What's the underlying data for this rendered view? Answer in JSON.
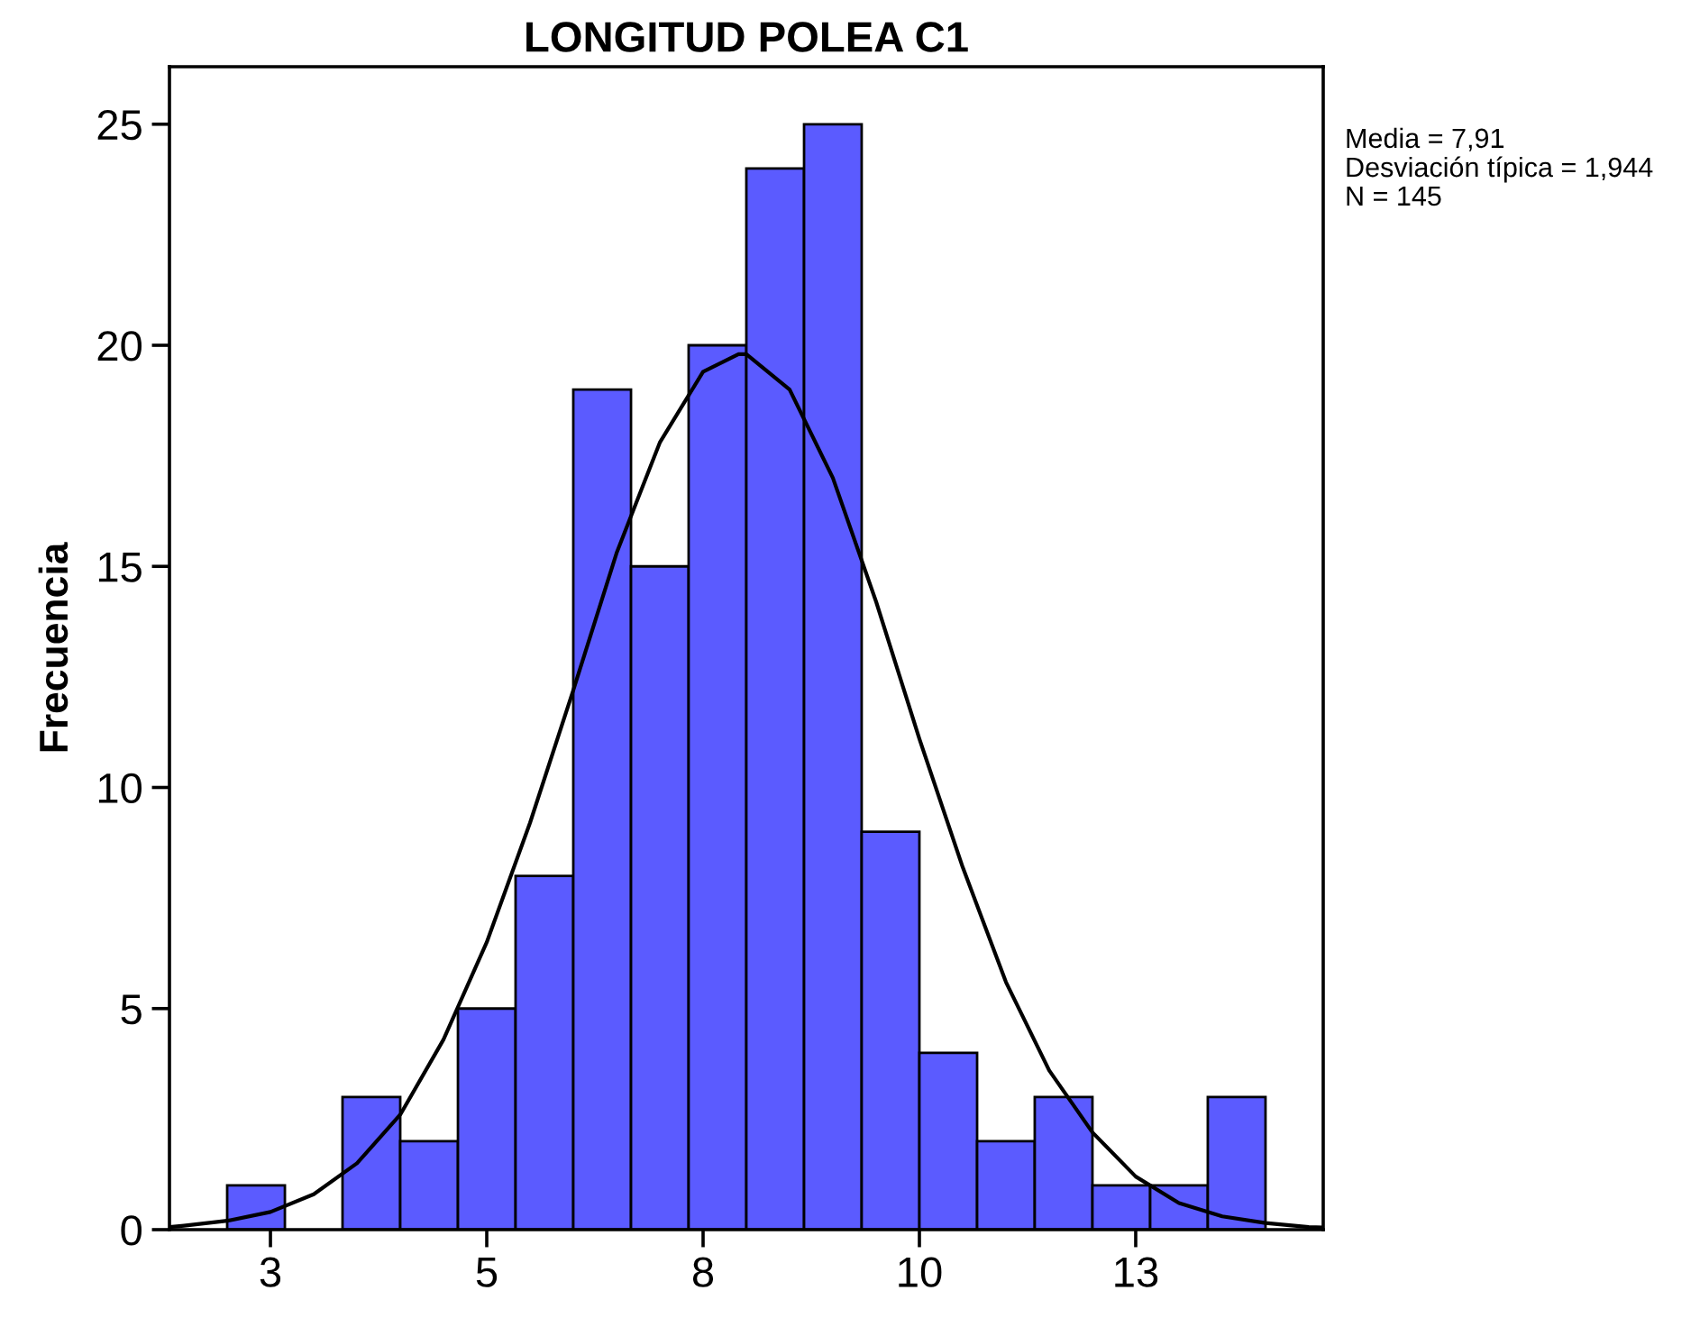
{
  "chart_data": {
    "type": "histogram",
    "title": "LONGITUD POLEA C1",
    "ylabel": "Frecuencia",
    "bins": [
      2,
      2.667,
      3.333,
      4,
      4.667,
      5.333,
      6,
      6.667,
      7.333,
      8,
      8.667,
      9.333,
      10,
      10.667,
      11.333,
      12,
      12.667,
      13.333,
      14
    ],
    "values": [
      1,
      0,
      3,
      2,
      5,
      8,
      19,
      15,
      20,
      24,
      25,
      9,
      4,
      2,
      3,
      1,
      1,
      3
    ],
    "color": "#5b5bff",
    "series": [
      {
        "type": "line",
        "color": "#000000",
        "x": [
          1.333,
          1.5,
          2,
          2.5,
          3,
          3.5,
          4,
          4.5,
          5,
          5.5,
          6,
          6.5,
          7,
          7.5,
          7.91,
          8,
          8.5,
          9,
          9.5,
          10,
          10.5,
          11,
          11.5,
          12,
          12.5,
          13,
          13.5,
          14,
          14.5,
          14.667
        ],
        "values": [
          0.06,
          0.09,
          0.2,
          0.4,
          0.8,
          1.5,
          2.6,
          4.3,
          6.5,
          9.2,
          12.2,
          15.3,
          17.8,
          19.4,
          19.8,
          19.8,
          19.0,
          17.0,
          14.2,
          11.1,
          8.2,
          5.6,
          3.6,
          2.2,
          1.2,
          0.6,
          0.3,
          0.15,
          0.06,
          0.05
        ]
      }
    ],
    "xlim": [
      1.333,
      14.667
    ],
    "xticks": [
      {
        "value": 2.5,
        "label": "3"
      },
      5,
      {
        "value": 7.5,
        "label": "8"
      },
      10,
      {
        "value": 12.5,
        "label": "13"
      }
    ],
    "ylim": [
      0,
      26.3
    ],
    "yticks": [
      0,
      5,
      10,
      15,
      20,
      25
    ],
    "grid": false,
    "legend": false,
    "annotations": [
      "Media = 7,91",
      "Desviación típica = 1,944",
      "N = 145"
    ]
  }
}
